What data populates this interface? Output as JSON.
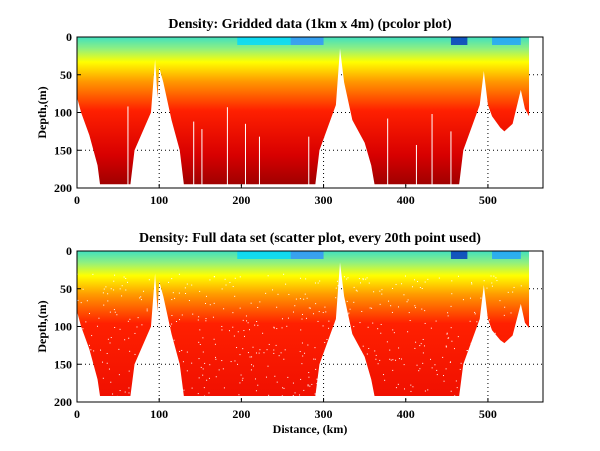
{
  "chart_data": [
    {
      "type": "heatmap",
      "title": "Density: Gridded data (1km x 4m) (pcolor plot)",
      "xlabel": "",
      "ylabel": "Depth,(m)",
      "xlim": [
        0,
        567
      ],
      "ylim": [
        200,
        0
      ],
      "xticks": [
        "0",
        "100",
        "200",
        "300",
        "400",
        "500"
      ],
      "yticks": [
        "0",
        "50",
        "100",
        "150",
        "200"
      ],
      "grid": true,
      "colormap": [
        "#0033cc",
        "#00ccff",
        "#66ffcc",
        "#ffff00",
        "#ff9900",
        "#ff0000",
        "#aa0000"
      ],
      "bottom_profile": {
        "distance_km": [
          0,
          5,
          15,
          25,
          28,
          65,
          70,
          80,
          90,
          95,
          98,
          100,
          105,
          115,
          125,
          130,
          290,
          295,
          305,
          315,
          320,
          325,
          335,
          350,
          358,
          362,
          465,
          470,
          480,
          490,
          495,
          500,
          505,
          515,
          520,
          530,
          540,
          545,
          550
        ],
        "depth_m": [
          80,
          100,
          130,
          170,
          195,
          195,
          150,
          125,
          100,
          30,
          80,
          40,
          60,
          110,
          150,
          195,
          195,
          150,
          120,
          90,
          15,
          60,
          110,
          140,
          170,
          195,
          195,
          150,
          120,
          90,
          45,
          90,
          105,
          120,
          125,
          115,
          70,
          95,
          105
        ]
      }
    },
    {
      "type": "scatter",
      "title": "Density: Full data set (scatter plot, every 20th point used)",
      "xlabel": "Distance, (km)",
      "ylabel": "Depth,(m)",
      "xlim": [
        0,
        567
      ],
      "ylim": [
        200,
        0
      ],
      "xticks": [
        "0",
        "100",
        "200",
        "300",
        "400",
        "500"
      ],
      "yticks": [
        "0",
        "50",
        "100",
        "150",
        "200"
      ],
      "grid": true,
      "bottom_profile": {
        "distance_km": [
          0,
          5,
          15,
          25,
          28,
          65,
          70,
          80,
          90,
          95,
          98,
          100,
          105,
          115,
          125,
          130,
          290,
          295,
          305,
          315,
          320,
          325,
          335,
          350,
          358,
          362,
          465,
          470,
          480,
          490,
          495,
          500,
          505,
          515,
          520,
          530,
          540,
          545,
          550
        ],
        "depth_m": [
          80,
          100,
          130,
          170,
          192,
          192,
          150,
          125,
          100,
          30,
          80,
          40,
          60,
          110,
          150,
          192,
          192,
          150,
          120,
          90,
          15,
          60,
          110,
          140,
          170,
          192,
          192,
          150,
          120,
          90,
          45,
          90,
          105,
          118,
          122,
          112,
          70,
          95,
          102
        ]
      }
    }
  ]
}
